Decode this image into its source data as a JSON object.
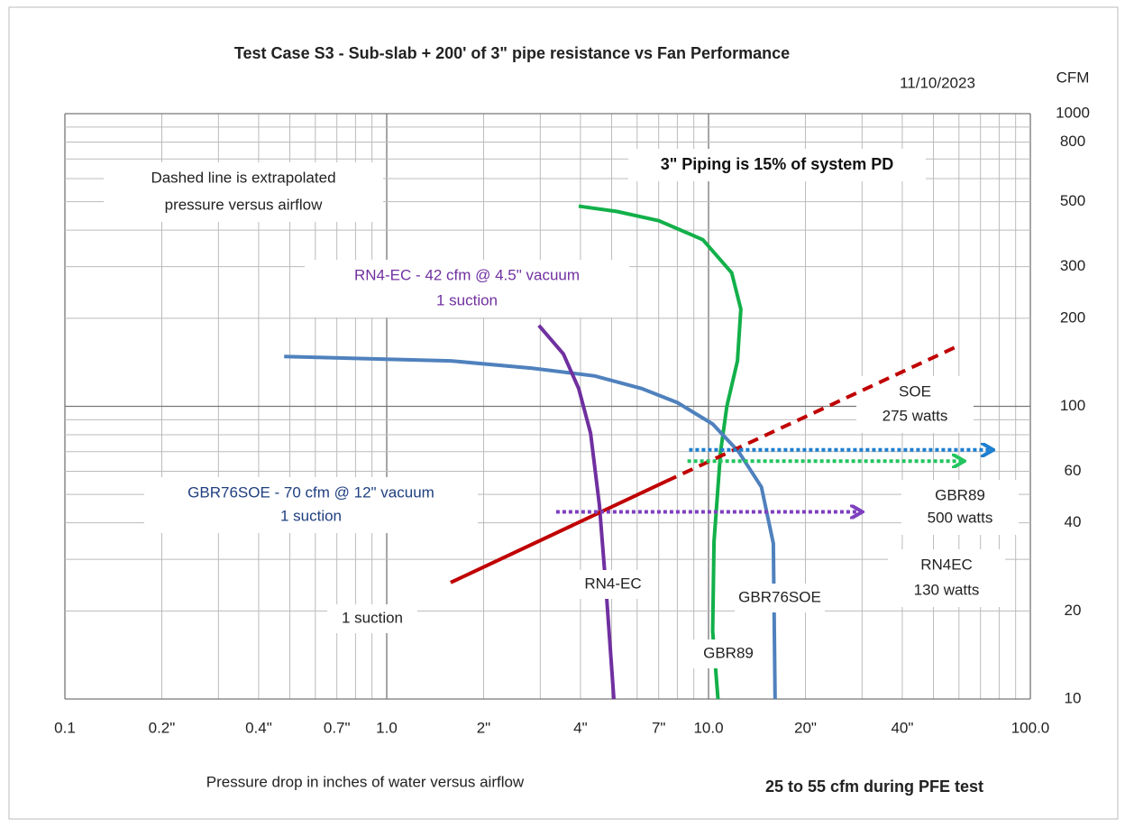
{
  "chart_data": {
    "type": "line",
    "title": "Test Case S3  -   Sub-slab + 200' of  3\" pipe resistance vs Fan Performance",
    "date": "11/10/2023",
    "y_axis_label": "CFM",
    "x_axis_label": "Pressure drop in inches of water versus airflow",
    "note": "25 to  55 cfm during PFE test",
    "log_x": true,
    "log_y": true,
    "grid": true,
    "xlim": [
      0.1,
      100
    ],
    "ylim": [
      10,
      1000
    ],
    "xticks": [
      0.1,
      {
        "value": 0.2,
        "label": "0.2\""
      },
      {
        "value": 0.4,
        "label": "0.4\""
      },
      {
        "value": 0.7,
        "label": "0.7\""
      },
      {
        "value": 1,
        "label": "1.0"
      },
      {
        "value": 2,
        "label": "2\""
      },
      {
        "value": 4,
        "label": "4\""
      },
      {
        "value": 7,
        "label": "7\""
      },
      {
        "value": 10,
        "label": "10.0"
      },
      {
        "value": 20,
        "label": "20\""
      },
      {
        "value": 40,
        "label": "40\""
      },
      {
        "value": 100,
        "label": "100.0"
      }
    ],
    "yticks": [
      10,
      20,
      40,
      60,
      100,
      200,
      300,
      500,
      800,
      1000
    ],
    "xgrid": [
      0.1,
      0.2,
      0.3,
      0.4,
      0.5,
      0.6,
      0.7,
      0.8,
      0.9,
      1,
      2,
      3,
      4,
      5,
      6,
      7,
      8,
      9,
      10,
      20,
      30,
      40,
      50,
      60,
      70,
      80,
      90,
      100
    ],
    "ygrid": [
      10,
      20,
      30,
      40,
      50,
      60,
      70,
      80,
      90,
      100,
      200,
      300,
      400,
      500,
      600,
      700,
      800,
      900,
      1000
    ],
    "series": [
      {
        "name": "GBR89",
        "color": "#12b04a",
        "x": [
          3.95,
          5.2,
          7.0,
          9.6,
          11.8,
          12.6,
          12.3,
          11.4,
          10.9,
          10.4,
          10.3,
          10.7
        ],
        "values": [
          483,
          463,
          431,
          371,
          286,
          215,
          143,
          100,
          70,
          34.5,
          17,
          10
        ]
      },
      {
        "name": "GBR76SOE",
        "color": "#4f81bd",
        "x": [
          0.48,
          1.58,
          2.83,
          4.43,
          6.2,
          8.0,
          10.3,
          12.4,
          14.6,
          15.9,
          16.1
        ],
        "values": [
          148,
          143,
          135,
          127,
          115,
          103,
          87,
          70,
          53,
          34,
          10
        ]
      },
      {
        "name": "RN4-EC",
        "color": "#7030a0",
        "x": [
          2.97,
          3.54,
          3.95,
          4.3,
          4.58,
          4.8,
          5.08
        ],
        "values": [
          189,
          151,
          115,
          81,
          46,
          24,
          10
        ]
      },
      {
        "name": "1 suction",
        "color": "#c00000",
        "x": [
          1.58,
          7.4
        ],
        "values": [
          25,
          55.5
        ]
      },
      {
        "color": "#c00000",
        "dash": "dashed",
        "x": [
          7.4,
          60.5
        ],
        "values": [
          55.5,
          162
        ]
      }
    ],
    "arrows": [
      {
        "color": "#1e7fd0",
        "x": [
          8.7,
          75.8
        ],
        "values": [
          71,
          71
        ]
      },
      {
        "color": "#22c55e",
        "x": [
          8.6,
          61.6
        ],
        "values": [
          65,
          65
        ]
      },
      {
        "color": "#7e3fbf",
        "x": [
          3.36,
          29.7
        ],
        "values": [
          43.6,
          43.6
        ]
      }
    ],
    "annotations": [
      {
        "lines": [
          "Dashed line is extrapolated",
          "pressure versus airflow"
        ]
      },
      {
        "lines": [
          "3\" Piping is 15% of system PD"
        ]
      },
      {
        "lines": [
          "RN4-EC  - 42 cfm @ 4.5\" vacuum",
          "1 suction"
        ]
      },
      {
        "lines": [
          "SOE",
          "275 watts"
        ]
      },
      {
        "lines": [
          "GBR76SOE  - 70 cfm @ 12\" vacuum",
          "1 suction"
        ]
      },
      {
        "lines": [
          "GBR89",
          "500 watts"
        ]
      },
      {
        "lines": [
          "RN4EC",
          "130 watts"
        ]
      }
    ]
  }
}
